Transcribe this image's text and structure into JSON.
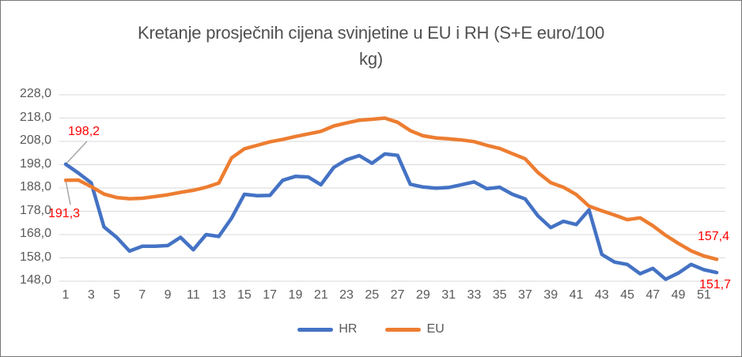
{
  "title": {
    "line1": "Kretanje prosječnih cijena svinjetine u EU i RH (S+E euro/100",
    "line2": "kg)"
  },
  "colors": {
    "hr_line": "#4472C4",
    "eu_line": "#ED7D31",
    "gridline": "#D9D9D9",
    "axis_text": "#595959",
    "annotation_text": "#FF0000",
    "leader_line": "#A6A6A6"
  },
  "legend": {
    "items": [
      {
        "label": "HR",
        "color": "#4472C4"
      },
      {
        "label": "EU",
        "color": "#ED7D31"
      }
    ]
  },
  "annotations": [
    {
      "text": "198,2",
      "series": "HR",
      "week": 1
    },
    {
      "text": "191,3",
      "series": "EU",
      "week": 1
    },
    {
      "text": "157,4",
      "series": "EU",
      "week": 52
    },
    {
      "text": "151,7",
      "series": "HR",
      "week": 52
    }
  ],
  "chart_data": {
    "type": "line",
    "title": "Kretanje prosječnih cijena svinjetine u EU i RH (S+E euro/100 kg)",
    "x": [
      1,
      2,
      3,
      4,
      5,
      6,
      7,
      8,
      9,
      10,
      11,
      12,
      13,
      14,
      15,
      16,
      17,
      18,
      19,
      20,
      21,
      22,
      23,
      24,
      25,
      26,
      27,
      28,
      29,
      30,
      31,
      32,
      33,
      34,
      35,
      36,
      37,
      38,
      39,
      40,
      41,
      42,
      43,
      44,
      45,
      46,
      47,
      48,
      49,
      50,
      51,
      52
    ],
    "x_tick_labels": [
      "1",
      "3",
      "5",
      "7",
      "9",
      "11",
      "13",
      "15",
      "17",
      "19",
      "21",
      "23",
      "25",
      "27",
      "29",
      "31",
      "33",
      "35",
      "37",
      "39",
      "41",
      "43",
      "45",
      "47",
      "49",
      "51"
    ],
    "y_ticks": [
      228,
      218,
      208,
      198,
      188,
      178,
      168,
      158,
      148
    ],
    "y_tick_labels": [
      "228,0",
      "218,0",
      "208,0",
      "198,0",
      "188,0",
      "178,0",
      "168,0",
      "158,0",
      "148,0"
    ],
    "ylim": [
      148,
      228
    ],
    "grid": true,
    "legend_position": "bottom",
    "series": [
      {
        "name": "HR",
        "color": "#4472C4",
        "values": [
          198.2,
          194.4,
          190.2,
          171.3,
          166.8,
          160.9,
          163.0,
          163.0,
          163.3,
          166.8,
          161.5,
          168.0,
          167.2,
          175.1,
          185.3,
          184.7,
          184.8,
          191.3,
          193.0,
          192.7,
          189.4,
          196.8,
          200.1,
          201.9,
          198.6,
          202.6,
          202.0,
          189.6,
          188.4,
          187.9,
          188.2,
          189.4,
          190.6,
          187.7,
          188.3,
          185.3,
          183.3,
          176.0,
          171.0,
          173.7,
          172.3,
          178.6,
          159.5,
          156.2,
          155.2,
          151.2,
          153.5,
          148.8,
          151.5,
          155.2,
          152.9,
          151.7
        ]
      },
      {
        "name": "EU",
        "color": "#ED7D31",
        "values": [
          191.3,
          191.4,
          188.6,
          185.4,
          183.9,
          183.4,
          183.6,
          184.3,
          185.1,
          186.1,
          187.0,
          188.3,
          190.1,
          200.9,
          204.8,
          206.3,
          207.8,
          208.8,
          210.1,
          211.2,
          212.3,
          214.6,
          215.9,
          217.1,
          217.5,
          218.0,
          216.2,
          212.6,
          210.4,
          209.5,
          209.1,
          208.6,
          207.9,
          206.3,
          205.0,
          202.7,
          200.5,
          194.6,
          190.3,
          188.3,
          185.2,
          180.2,
          178.2,
          176.4,
          174.4,
          175.2,
          171.8,
          167.7,
          164.2,
          161.0,
          158.8,
          157.4
        ]
      }
    ],
    "point_label_values": {
      "HR_first": "198,2",
      "EU_first": "191,3",
      "EU_last": "157,4",
      "HR_last": "151,7"
    }
  }
}
